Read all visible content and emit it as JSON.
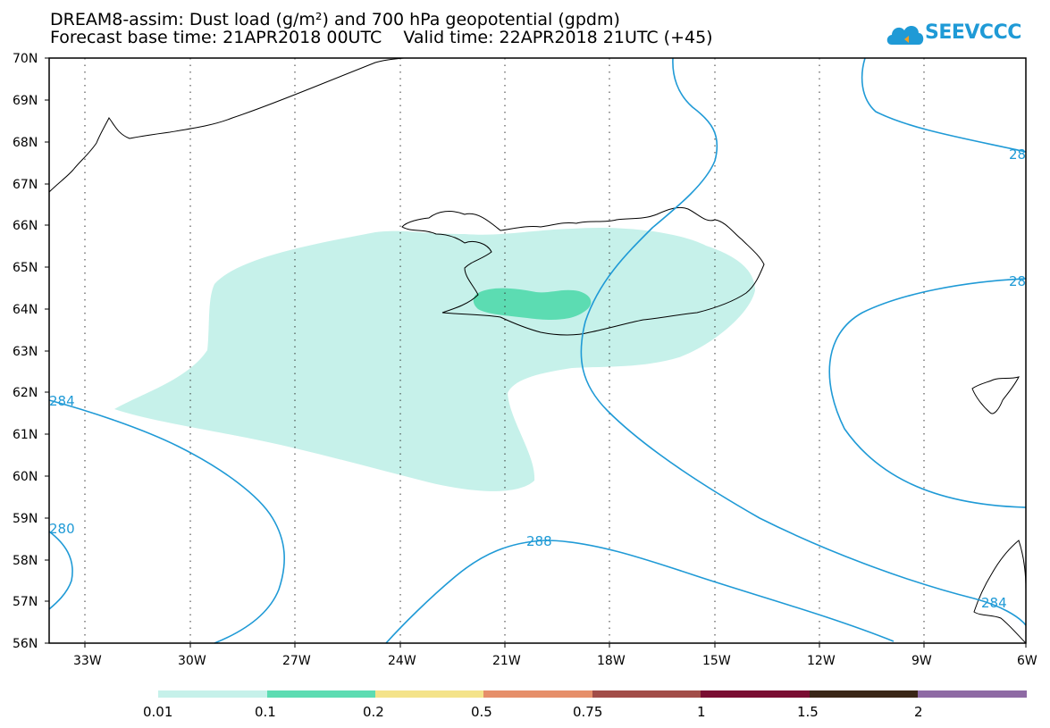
{
  "header": {
    "title_line1": "DREAM8-assim: Dust load (g/m²) and 700 hPa geopotential (gpdm)",
    "title_line2": "Forecast base time: 21APR2018 00UTC    Valid time: 22APR2018 21UTC (+45)"
  },
  "logo": {
    "text": "SEEVCCC",
    "color": "#1f9ad6"
  },
  "map": {
    "lat_labels": [
      "70N",
      "69N",
      "68N",
      "67N",
      "66N",
      "65N",
      "64N",
      "63N",
      "62N",
      "61N",
      "60N",
      "59N",
      "58N",
      "57N",
      "56N"
    ],
    "lon_labels": [
      "33W",
      "30W",
      "27W",
      "24W",
      "21W",
      "18W",
      "15W",
      "12W",
      "9W",
      "6W"
    ],
    "contour_color": "#1f9ad6",
    "contour_labels": [
      "284",
      "280",
      "288",
      "284",
      "28",
      "28"
    ]
  },
  "colorbar": {
    "ticks": [
      "0.01",
      "0.1",
      "0.2",
      "0.5",
      "0.75",
      "1",
      "1.5",
      "2"
    ],
    "colors": [
      "#c6f1ea",
      "#5cdcb2",
      "#f4e38a",
      "#e68f6a",
      "#a24d48",
      "#7a0d32",
      "#3a2617",
      "#8e6aa4"
    ]
  }
}
